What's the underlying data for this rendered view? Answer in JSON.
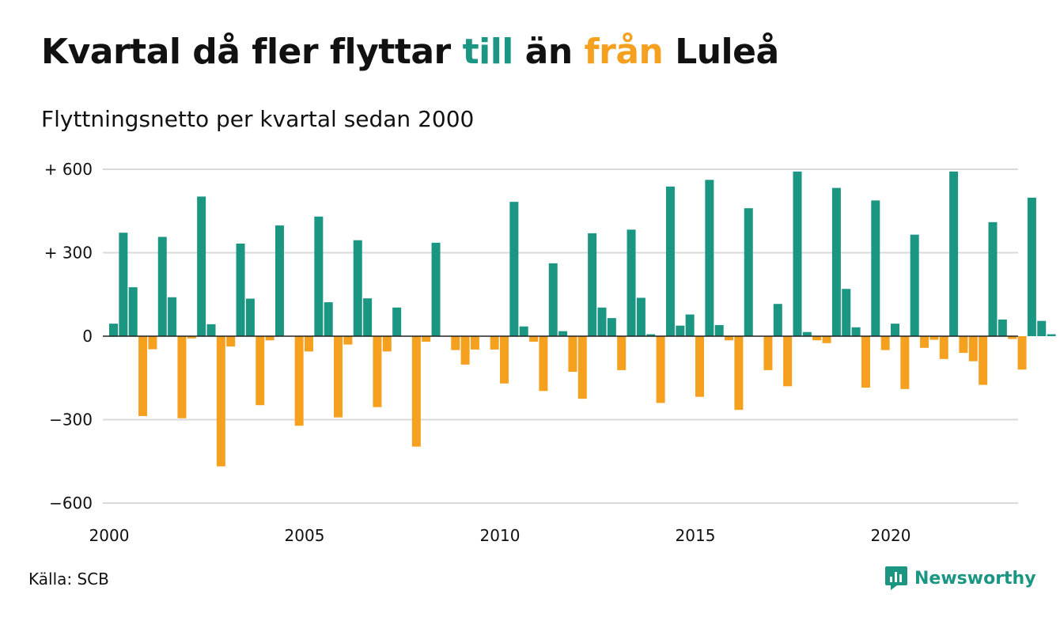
{
  "header": {
    "title_part1": "Kvartal då fler flyttar ",
    "title_till": "till",
    "title_part2": " än ",
    "title_fran": "från",
    "title_part3": " Luleå",
    "subtitle": "Flyttningsnetto per kvartal sedan 2000"
  },
  "footer": {
    "source": "Källa: SCB",
    "brand": "Newsworthy"
  },
  "colors": {
    "positive": "#1a9683",
    "negative": "#f5a01e",
    "grid": "#d9d9d9",
    "text": "#111111"
  },
  "chart_data": {
    "type": "bar",
    "ylim": [
      -600,
      600
    ],
    "y_ticks": [
      600,
      300,
      0,
      -300,
      -600
    ],
    "y_tick_labels": [
      "+ 600",
      "+ 300",
      "0",
      "−300",
      "−600"
    ],
    "x_ticks": [
      2000,
      2005,
      2010,
      2015,
      2020
    ],
    "x_tick_labels": [
      "2000",
      "2005",
      "2010",
      "2015",
      "2020"
    ],
    "x_start": 2000,
    "quarters_per_year": 4,
    "values": [
      45,
      372,
      176,
      -287,
      -47,
      357,
      140,
      -295,
      -8,
      502,
      43,
      -468,
      -37,
      333,
      135,
      -248,
      -15,
      398,
      0,
      -322,
      -55,
      430,
      122,
      -292,
      -30,
      345,
      136,
      -255,
      -55,
      103,
      0,
      -397,
      -20,
      336,
      0,
      -50,
      -102,
      -48,
      0,
      -48,
      -170,
      483,
      35,
      -20,
      -197,
      262,
      18,
      -128,
      -225,
      370,
      103,
      65,
      -122,
      383,
      138,
      7,
      -240,
      538,
      38,
      78,
      -218,
      562,
      40,
      -15,
      -265,
      460,
      0,
      -122,
      116,
      -180,
      592,
      15,
      -15,
      -25,
      533,
      170,
      32,
      -185,
      488,
      -50,
      45,
      -190,
      365,
      -42,
      -13,
      -82,
      592,
      -60,
      -90,
      -175,
      410,
      60,
      -10,
      -120,
      498,
      55,
      7
    ]
  }
}
